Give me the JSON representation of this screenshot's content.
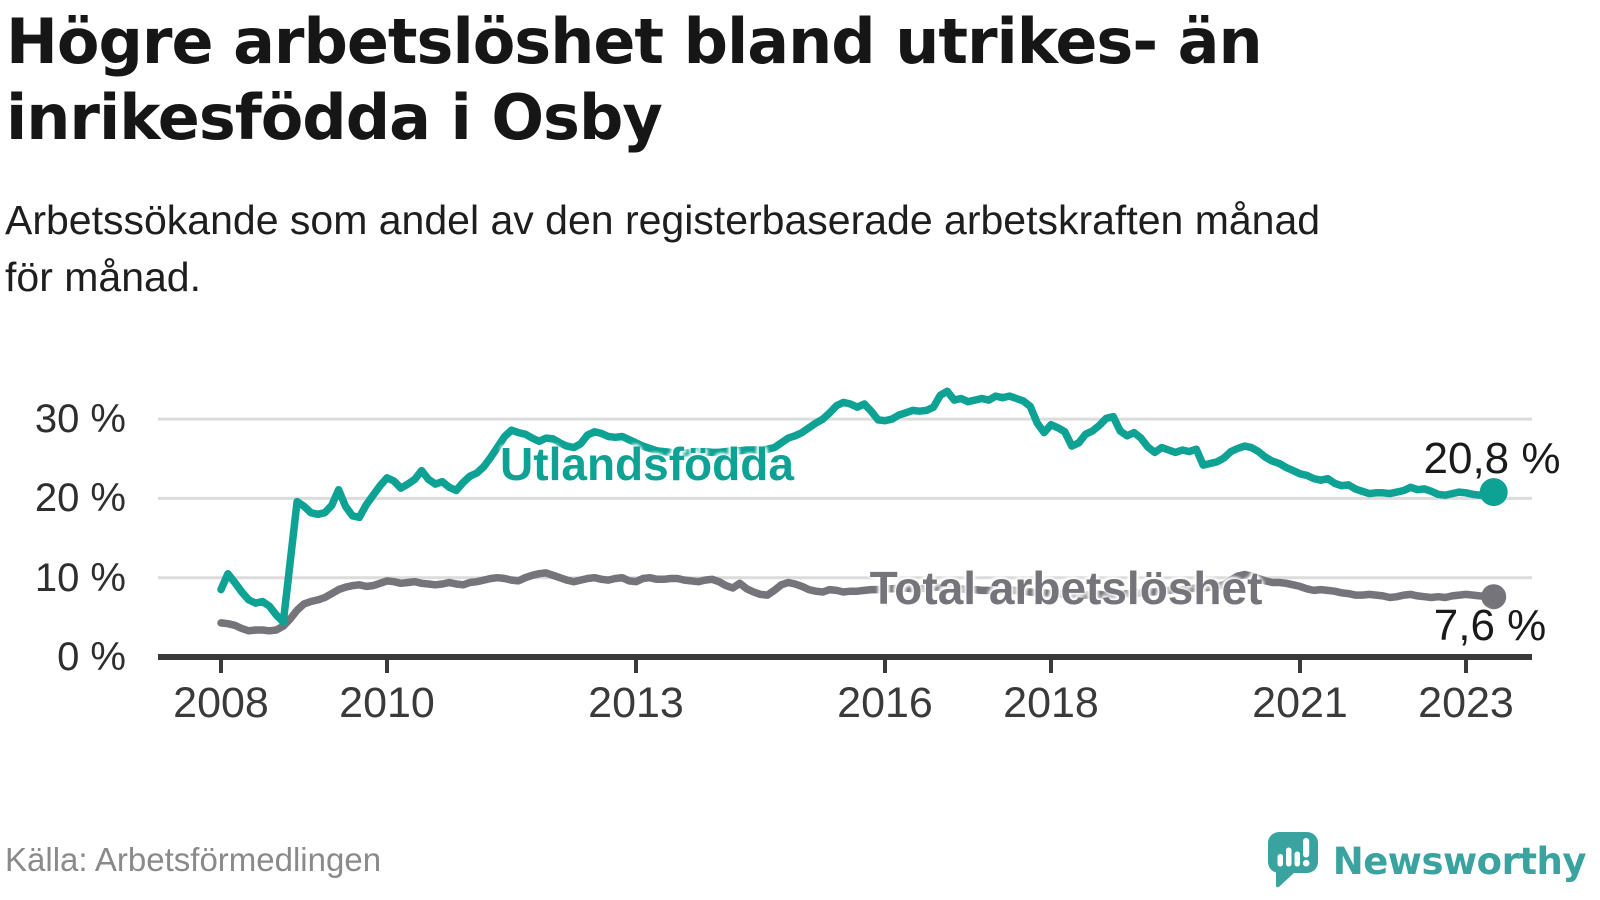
{
  "header": {
    "title": "Högre arbetslöshet bland utrikes- än\ninrikesfödda i Osby",
    "subtitle": "Arbetssökande som andel av den registerbaserade arbetskraften månad\nför månad."
  },
  "footer": {
    "source": "Källa: Arbetsförmedlingen",
    "logo_text": "Newsworthy",
    "logo_icon": "newsworthy-speech-bubble-bar-chart-icon"
  },
  "colors": {
    "series_utlandsfodda": "#0ea294",
    "series_total": "#74747a",
    "gridline": "#dcdcdc",
    "axis": "#3a3a3a",
    "logo_teal": "#3aa3a0"
  },
  "chart_data": {
    "type": "line",
    "title": "Högre arbetslöshet bland utrikes- än inrikesfödda i Osby",
    "subtitle": "Arbetssökande som andel av den registerbaserade arbetskraften månad för månad.",
    "x_start_year": 2008,
    "points_per_month": 1,
    "xlim": [
      2007.5,
      2023.9
    ],
    "ylim": [
      0,
      35
    ],
    "grid": "horizontal",
    "legend_position": "inline-labels",
    "y_ticks": [
      {
        "label": "0 %",
        "value": 0
      },
      {
        "label": "10 %",
        "value": 10
      },
      {
        "label": "20 %",
        "value": 20
      },
      {
        "label": "30 %",
        "value": 30
      }
    ],
    "x_ticks": [
      {
        "label": "2008",
        "year": 2008
      },
      {
        "label": "2010",
        "year": 2010
      },
      {
        "label": "2013",
        "year": 2013
      },
      {
        "label": "2016",
        "year": 2016
      },
      {
        "label": "2018",
        "year": 2018
      },
      {
        "label": "2021",
        "year": 2021
      },
      {
        "label": "2023",
        "year": 2023
      }
    ],
    "series": [
      {
        "name": "Utlandsfödda",
        "color": "#0ea294",
        "end_label": "20,8 %",
        "end_value": 20.8,
        "dot_radius": 14,
        "values": [
          8.5,
          10.5,
          9.4,
          8.2,
          7.2,
          6.8,
          7.0,
          6.4,
          5.3,
          4.4,
          12.0,
          19.6,
          19.0,
          18.2,
          18.0,
          18.2,
          19.1,
          21.1,
          19.0,
          17.8,
          17.6,
          19.2,
          20.4,
          21.6,
          22.6,
          22.2,
          21.3,
          21.8,
          22.4,
          23.5,
          22.4,
          21.8,
          22.1,
          21.4,
          21.0,
          22.0,
          22.8,
          23.2,
          24.0,
          25.2,
          26.5,
          27.8,
          28.6,
          28.3,
          28.1,
          27.6,
          27.2,
          27.6,
          27.5,
          27.0,
          26.6,
          26.4,
          26.9,
          28.0,
          28.4,
          28.2,
          27.8,
          27.7,
          27.8,
          27.4,
          27.0,
          26.6,
          26.3,
          26.0,
          25.9,
          25.8,
          25.7,
          25.7,
          25.8,
          25.9,
          25.9,
          25.8,
          25.8,
          25.9,
          26.0,
          26.0,
          26.1,
          26.1,
          26.1,
          26.2,
          26.4,
          27.0,
          27.6,
          27.9,
          28.3,
          28.9,
          29.5,
          30.0,
          30.8,
          31.7,
          32.1,
          31.9,
          31.5,
          31.9,
          31.0,
          29.9,
          29.8,
          30.0,
          30.5,
          30.8,
          31.1,
          31.0,
          31.1,
          31.5,
          33.0,
          33.5,
          32.4,
          32.6,
          32.2,
          32.4,
          32.6,
          32.4,
          32.9,
          32.7,
          32.9,
          32.6,
          32.3,
          31.6,
          29.5,
          28.3,
          29.3,
          28.9,
          28.4,
          26.6,
          27.0,
          28.1,
          28.5,
          29.2,
          30.1,
          30.3,
          28.5,
          27.9,
          28.3,
          27.6,
          26.5,
          25.8,
          26.4,
          26.1,
          25.8,
          26.1,
          25.9,
          26.2,
          24.2,
          24.4,
          24.6,
          25.1,
          25.9,
          26.3,
          26.6,
          26.4,
          25.9,
          25.2,
          24.7,
          24.4,
          23.9,
          23.5,
          23.1,
          22.9,
          22.5,
          22.3,
          22.5,
          21.9,
          21.6,
          21.7,
          21.2,
          20.9,
          20.6,
          20.7,
          20.7,
          20.6,
          20.8,
          21.0,
          21.4,
          21.1,
          21.2,
          20.9,
          20.5,
          20.4,
          20.6,
          20.8,
          20.7,
          20.5,
          20.4,
          20.6,
          20.8
        ]
      },
      {
        "name": "Total arbetslöshet",
        "color": "#74747a",
        "end_label": "7,6 %",
        "end_value": 7.6,
        "dot_radius": 12.5,
        "values": [
          4.3,
          4.2,
          4.0,
          3.6,
          3.3,
          3.4,
          3.4,
          3.3,
          3.4,
          3.9,
          4.8,
          5.9,
          6.7,
          7.0,
          7.2,
          7.5,
          8.0,
          8.5,
          8.8,
          9.0,
          9.1,
          8.9,
          9.0,
          9.3,
          9.6,
          9.5,
          9.3,
          9.4,
          9.5,
          9.3,
          9.2,
          9.1,
          9.2,
          9.4,
          9.2,
          9.1,
          9.4,
          9.5,
          9.7,
          9.9,
          10.0,
          9.9,
          9.7,
          9.6,
          10.0,
          10.3,
          10.5,
          10.6,
          10.3,
          10.0,
          9.7,
          9.5,
          9.7,
          9.9,
          10.0,
          9.8,
          9.7,
          9.9,
          10.0,
          9.6,
          9.5,
          9.9,
          10.0,
          9.8,
          9.8,
          9.9,
          9.9,
          9.7,
          9.6,
          9.5,
          9.7,
          9.8,
          9.5,
          9.0,
          8.7,
          9.3,
          8.6,
          8.2,
          7.9,
          7.8,
          8.4,
          9.1,
          9.4,
          9.2,
          8.9,
          8.5,
          8.3,
          8.2,
          8.5,
          8.4,
          8.2,
          8.3,
          8.3,
          8.4,
          8.5,
          8.5,
          8.6,
          8.6,
          8.7,
          8.7,
          8.6,
          8.6,
          8.7,
          8.8,
          8.8,
          8.7,
          8.6,
          8.6,
          8.5,
          8.5,
          8.4,
          8.4,
          8.3,
          8.3,
          8.4,
          8.4,
          8.3,
          8.2,
          8.1,
          8.1,
          8.0,
          8.0,
          7.9,
          7.9,
          7.8,
          7.8,
          7.9,
          7.9,
          7.8,
          7.8,
          7.9,
          8.0,
          8.0,
          8.1,
          8.2,
          8.2,
          8.3,
          8.4,
          8.5,
          8.5,
          8.6,
          8.7,
          8.7,
          8.8,
          8.9,
          9.1,
          9.7,
          10.2,
          10.4,
          10.2,
          9.9,
          9.6,
          9.4,
          9.4,
          9.3,
          9.1,
          8.9,
          8.6,
          8.4,
          8.5,
          8.4,
          8.3,
          8.1,
          8.0,
          7.8,
          7.8,
          7.9,
          7.8,
          7.7,
          7.5,
          7.6,
          7.8,
          7.9,
          7.7,
          7.6,
          7.5,
          7.6,
          7.5,
          7.7,
          7.8,
          7.9,
          7.8,
          7.7,
          7.6,
          7.6
        ]
      }
    ]
  }
}
